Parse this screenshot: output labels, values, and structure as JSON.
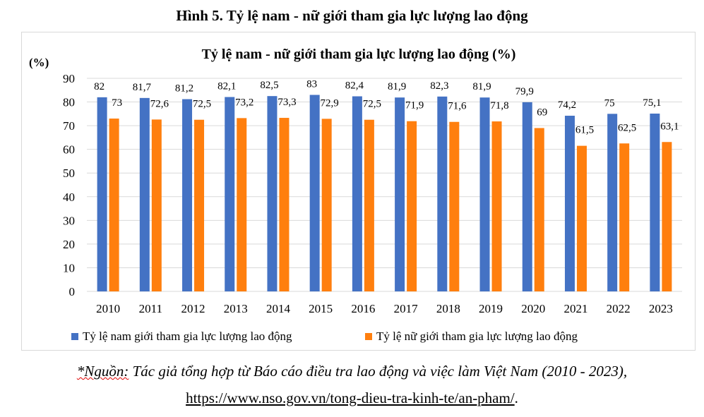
{
  "figure_title": "Hình 5. Tỷ lệ nam - nữ giới tham gia lực lượng lao động",
  "chart_data": {
    "type": "bar",
    "title": "Tỷ lệ nam - nữ giới tham gia lực lượng lao động (%)",
    "ylabel": "(%)",
    "xlabel": "",
    "ylim": [
      0,
      90
    ],
    "yticks": [
      0,
      10,
      20,
      30,
      40,
      50,
      60,
      70,
      80,
      90
    ],
    "grid": true,
    "legend_position": "bottom",
    "categories": [
      "2010",
      "2011",
      "2012",
      "2013",
      "2014",
      "2015",
      "2016",
      "2017",
      "2018",
      "2019",
      "2020",
      "2021",
      "2022",
      "2023"
    ],
    "series": [
      {
        "name": "Tỷ lệ nam giới tham gia lực lượng lao động",
        "color": "#4472C4",
        "values": [
          82,
          81.7,
          81.2,
          82.1,
          82.5,
          83,
          82.4,
          81.9,
          82.3,
          81.9,
          79.9,
          74.2,
          75,
          75.1
        ]
      },
      {
        "name": "Tỷ lệ nữ giới tham gia lực lượng lao động",
        "color": "#FF7F0E",
        "values": [
          73,
          72.6,
          72.5,
          73.2,
          73.3,
          72.9,
          72.5,
          71.9,
          71.6,
          71.8,
          69,
          61.5,
          62.5,
          63.1
        ]
      }
    ]
  },
  "source": {
    "prefix": "*Nguồn:",
    "text": " Tác giả tổng hợp từ Báo cáo điều tra lao động và việc làm Việt Nam (2010 - 2023),",
    "url": "https://www.nso.gov.vn/tong-dieu-tra-kinh-te/an-pham/",
    "url_suffix": "."
  }
}
